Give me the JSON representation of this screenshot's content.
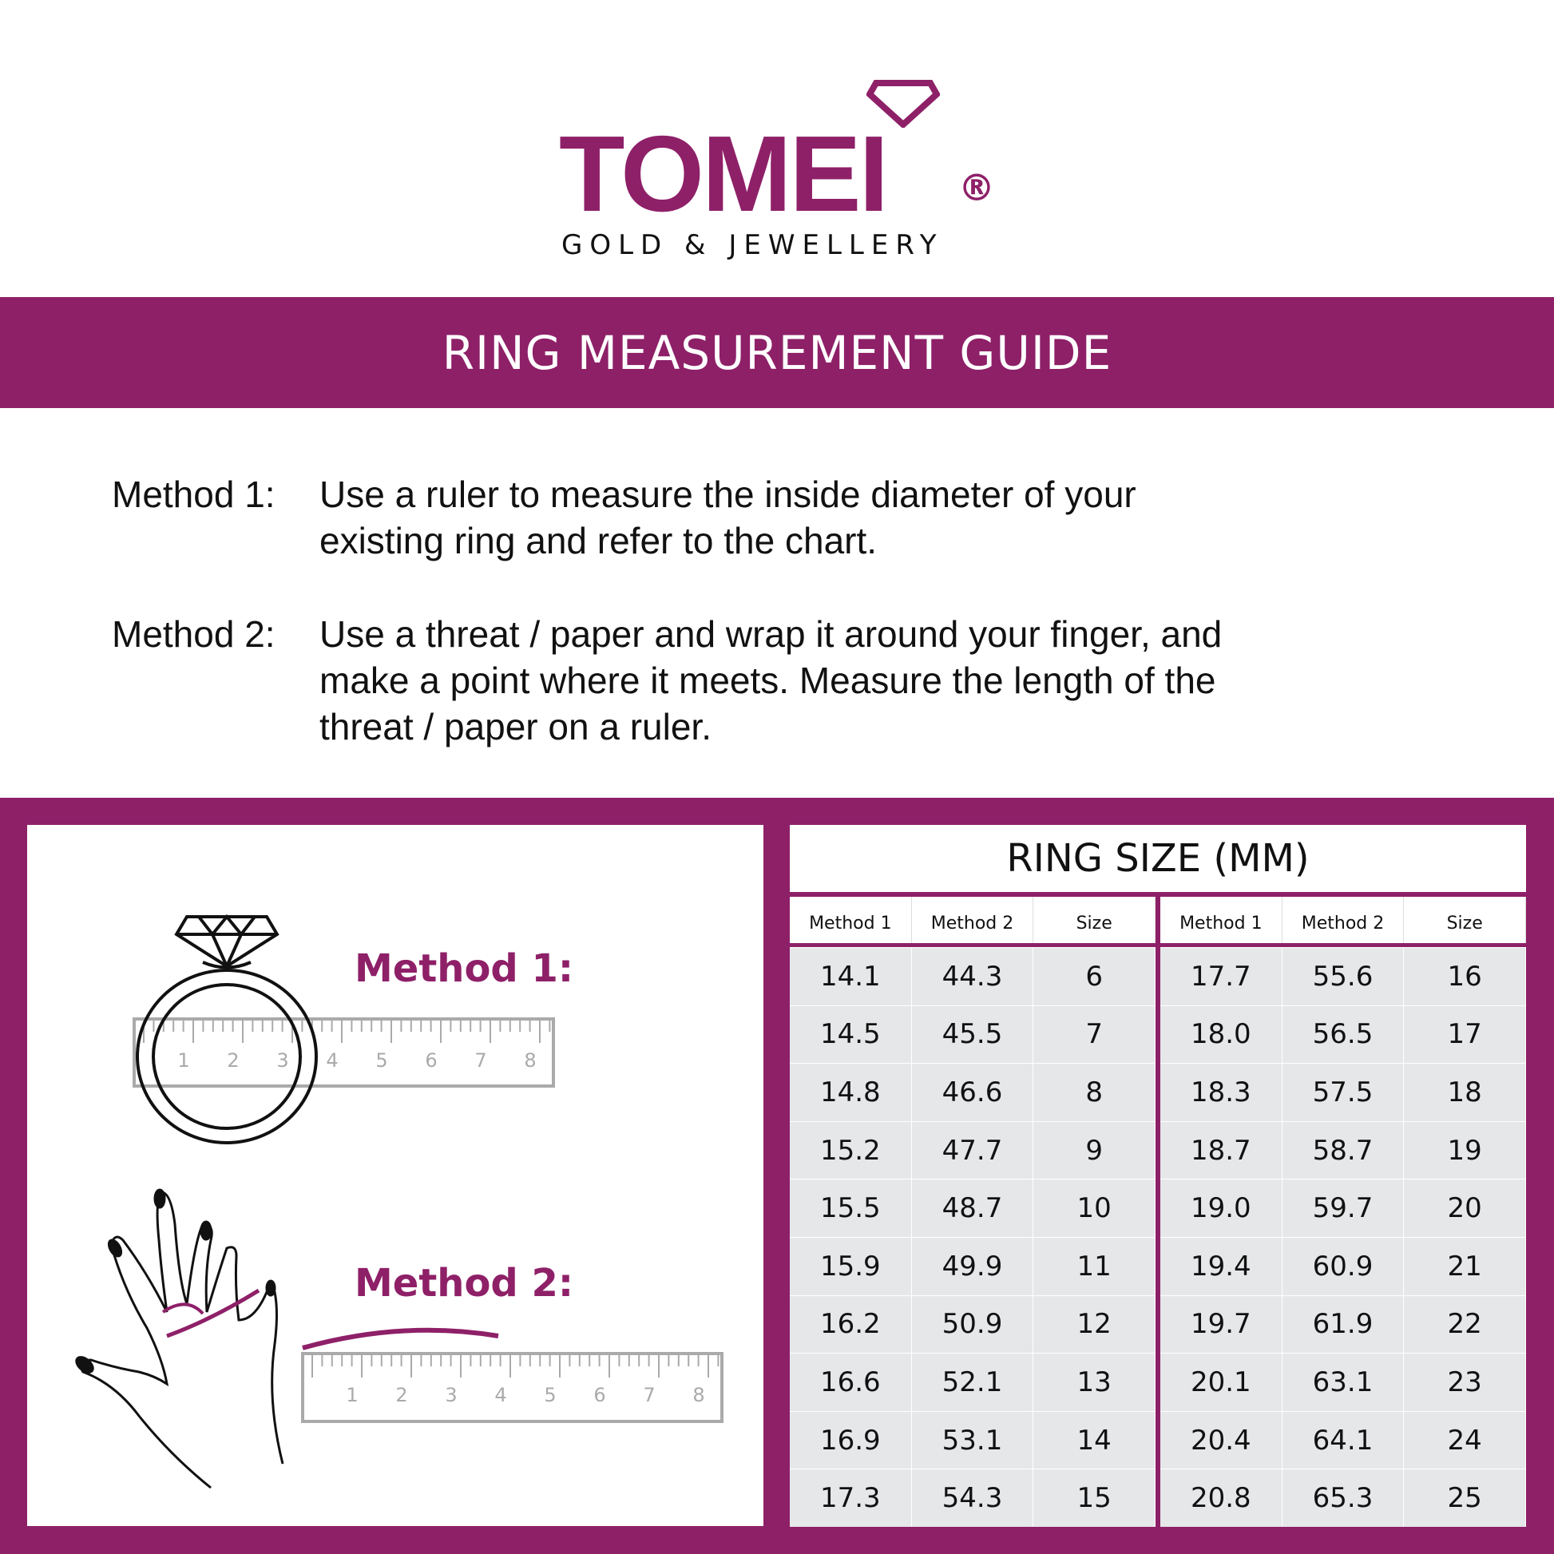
{
  "logo": {
    "word": "TOMEI",
    "tagline": "GOLD & JEWELLERY",
    "registered": "®"
  },
  "banner": {
    "title": "RING MEASUREMENT GUIDE"
  },
  "methods": [
    {
      "label": "Method 1:",
      "lines": [
        "Use a ruler to measure the inside diameter of your",
        "existing ring and refer to the chart."
      ]
    },
    {
      "label": "Method 2:",
      "lines": [
        "Use a threat / paper and wrap it around your finger, and",
        "make a point where it meets. Measure the length of the",
        "threat / paper on a ruler."
      ]
    }
  ],
  "illustrations": {
    "method1_label": "Method 1:",
    "method2_label": "Method 2:",
    "ruler_numbers": [
      "1",
      "2",
      "3",
      "4",
      "5",
      "6",
      "7",
      "8"
    ]
  },
  "table": {
    "title": "RING SIZE (MM)",
    "headers": [
      "Method 1",
      "Method 2",
      "Size"
    ],
    "left": [
      [
        "14.1",
        "44.3",
        "6"
      ],
      [
        "14.5",
        "45.5",
        "7"
      ],
      [
        "14.8",
        "46.6",
        "8"
      ],
      [
        "15.2",
        "47.7",
        "9"
      ],
      [
        "15.5",
        "48.7",
        "10"
      ],
      [
        "15.9",
        "49.9",
        "11"
      ],
      [
        "16.2",
        "50.9",
        "12"
      ],
      [
        "16.6",
        "52.1",
        "13"
      ],
      [
        "16.9",
        "53.1",
        "14"
      ],
      [
        "17.3",
        "54.3",
        "15"
      ]
    ],
    "right": [
      [
        "17.7",
        "55.6",
        "16"
      ],
      [
        "18.0",
        "56.5",
        "17"
      ],
      [
        "18.3",
        "57.5",
        "18"
      ],
      [
        "18.7",
        "58.7",
        "19"
      ],
      [
        "19.0",
        "59.7",
        "20"
      ],
      [
        "19.4",
        "60.9",
        "21"
      ],
      [
        "19.7",
        "61.9",
        "22"
      ],
      [
        "20.1",
        "63.1",
        "23"
      ],
      [
        "20.4",
        "64.1",
        "24"
      ],
      [
        "20.8",
        "65.3",
        "25"
      ]
    ]
  },
  "colors": {
    "brand": "#8e2068",
    "row_bg": "#e6e7e9"
  }
}
